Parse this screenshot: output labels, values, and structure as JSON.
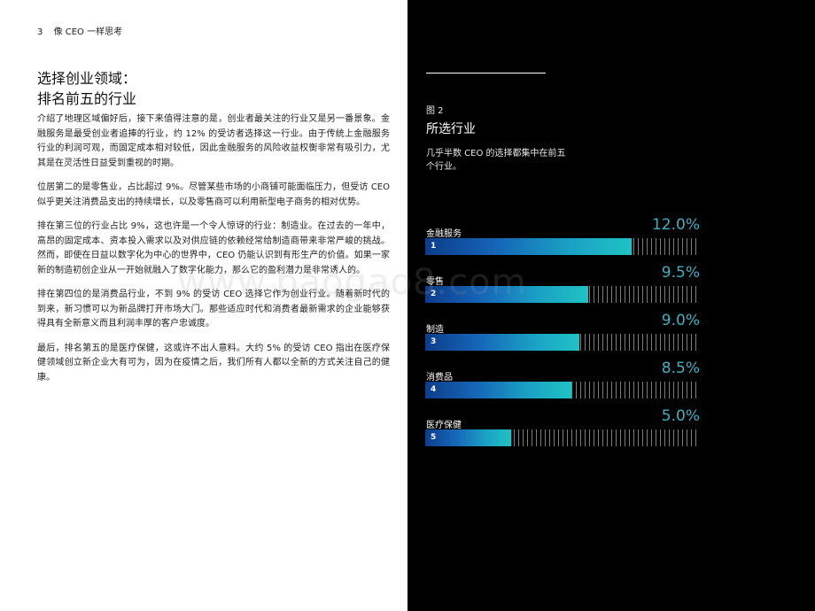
{
  "header": {
    "page_number": "3",
    "title": "像 CEO 一样思考"
  },
  "title": {
    "line1": "选择创业领域：",
    "line2": "排名前五的行业"
  },
  "paragraphs": [
    "介绍了地理区域偏好后，接下来值得注意的是，创业者最关注的行业又是另一番景象。金融服务是最受创业者追捧的行业，约 12% 的受访者选择这一行业。由于传统上金融服务行业的利润可观，而固定成本相对较低，因此金融服务的风险收益权衡非常有吸引力，尤其是在灵活性日益受到重视的时期。",
    "位居第二的是零售业，占比超过 9%。尽管某些市场的小商铺可能面临压力，但受访 CEO 似乎更关注消费品支出的持续增长，以及零售商可以利用新型电子商务的相对优势。",
    "排在第三位的行业占比 9%，这也许是一个令人惊讶的行业：制造业。在过去的一年中，高昂的固定成本、资本投入需求以及对供应链的依赖经常给制造商带来非常严峻的挑战。然而，即使在日益以数字化为中心的世界中，CEO 仍能认识到有形生产的价值。如果一家新的制造初创企业从一开始就融入了数字化能力，那么它的盈利潜力是非常诱人的。",
    "排在第四位的是消费品行业，不到 9% 的受访 CEO 选择它作为创业行业。随着新时代的到来，新习惯可以为新品牌打开市场大门。那些适应时代和消费者最新需求的企业能够获得具有全新意义而且利润丰厚的客户忠诚度。",
    "最后，排名第五的是医疗保健，这或许不出人意料。大约 5% 的受访 CEO 指出在医疗保健领域创立新企业大有可为，因为在疫情之后，我们所有人都以全新的方式关注自己的健康。"
  ],
  "watermark": "www.baogao8.com",
  "figure": {
    "label": "图 2",
    "title": "所选行业",
    "subtitle": "几乎半数 CEO 的选择都集中在前五个行业。"
  },
  "chart_data": {
    "type": "bar",
    "orientation": "horizontal",
    "categories": [
      "金融服务",
      "零售",
      "制造",
      "消费品",
      "医疗保健"
    ],
    "ranks": [
      "1",
      "2",
      "3",
      "4",
      "5"
    ],
    "values": [
      12.0,
      9.5,
      9.0,
      8.5,
      5.0
    ],
    "value_labels": [
      "12.0%",
      "9.5%",
      "9.0%",
      "8.5%",
      "5.0%"
    ],
    "xlim": [
      0,
      16
    ],
    "colors": {
      "bar_start": "#0d3d8c",
      "bar_end": "#20c2c4",
      "value_text": "#39b3c5"
    }
  }
}
